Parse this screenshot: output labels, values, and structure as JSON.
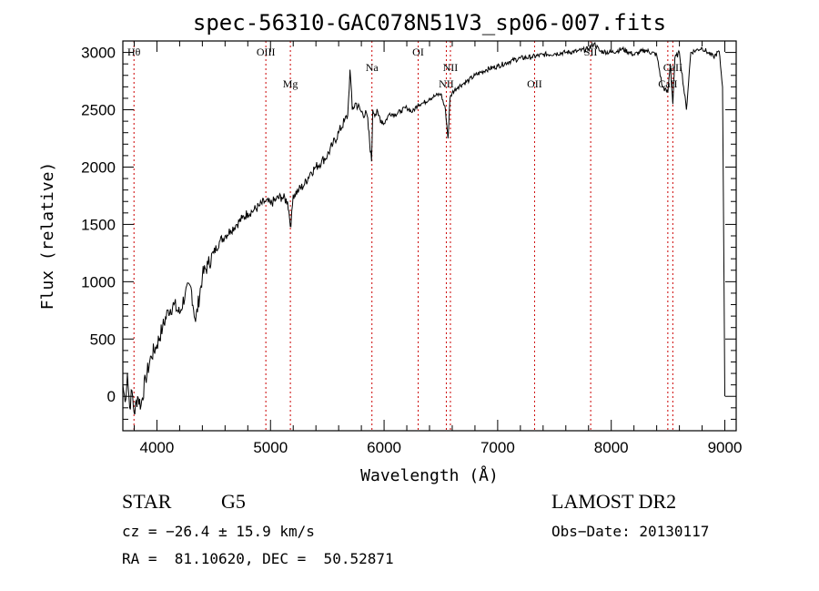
{
  "chart_data": {
    "type": "line",
    "title": "spec-56310-GAC078N51V3_sp06-007.fits",
    "xlabel": "Wavelength (Å)",
    "ylabel": "Flux (relative)",
    "xlim": [
      3700,
      9100
    ],
    "ylim": [
      -300,
      3100
    ],
    "xticks": [
      4000,
      5000,
      6000,
      7000,
      8000,
      9000
    ],
    "yticks": [
      0,
      500,
      1000,
      1500,
      2000,
      2500,
      3000
    ],
    "grid": false,
    "line_color": "#000000",
    "marker_color": "#cc0000",
    "series": [
      {
        "x": [
          3700,
          3720,
          3740,
          3760,
          3780,
          3800,
          3830,
          3860,
          3900,
          3950,
          4000,
          4050,
          4100,
          4150,
          4200,
          4250,
          4300,
          4340,
          4400,
          4450,
          4500,
          4550,
          4600,
          4650,
          4700,
          4750,
          4800,
          4850,
          4900,
          4950,
          5000,
          5050,
          5100,
          5150,
          5180,
          5200,
          5250,
          5300,
          5350,
          5400,
          5450,
          5500,
          5550,
          5600,
          5650,
          5680,
          5700,
          5720,
          5750,
          5800,
          5850,
          5890,
          5900,
          5950,
          6000,
          6050,
          6100,
          6150,
          6200,
          6250,
          6300,
          6350,
          6400,
          6450,
          6500,
          6540,
          6563,
          6580,
          6600,
          6650,
          6700,
          6750,
          6800,
          6900,
          7000,
          7100,
          7200,
          7300,
          7400,
          7500,
          7600,
          7700,
          7800,
          7850,
          7900,
          8000,
          8100,
          8200,
          8300,
          8400,
          8450,
          8498,
          8520,
          8542,
          8560,
          8600,
          8662,
          8700,
          8750,
          8800,
          8850,
          8900,
          8950,
          8980,
          9000
        ],
        "y": [
          100,
          -50,
          200,
          -100,
          50,
          -150,
          0,
          -80,
          150,
          350,
          450,
          600,
          750,
          800,
          720,
          900,
          950,
          650,
          1050,
          1150,
          1250,
          1350,
          1400,
          1450,
          1500,
          1550,
          1600,
          1620,
          1660,
          1700,
          1680,
          1720,
          1740,
          1700,
          1480,
          1760,
          1800,
          1850,
          1950,
          2000,
          2050,
          2100,
          2200,
          2300,
          2400,
          2450,
          2850,
          2500,
          2560,
          2480,
          2450,
          2050,
          2500,
          2450,
          2380,
          2470,
          2460,
          2490,
          2520,
          2480,
          2550,
          2560,
          2600,
          2620,
          2640,
          2500,
          2250,
          2600,
          2650,
          2700,
          2730,
          2760,
          2800,
          2850,
          2880,
          2920,
          2950,
          2960,
          2980,
          2990,
          3000,
          3010,
          3030,
          3080,
          3010,
          3000,
          3030,
          2980,
          3020,
          2980,
          2700,
          2650,
          2900,
          2550,
          2950,
          3000,
          2500,
          3000,
          3020,
          3040,
          3000,
          2960,
          3010,
          2700,
          0
        ]
      }
    ],
    "lines": [
      {
        "label": "Hθ",
        "x": 3798,
        "level": "top"
      },
      {
        "label": "OIII",
        "x": 4959,
        "level": "top"
      },
      {
        "label": "Mg",
        "x": 5175,
        "level": "low"
      },
      {
        "label": "Na",
        "x": 5893,
        "level": "mid"
      },
      {
        "label": "OI",
        "x": 6300,
        "level": "top"
      },
      {
        "label": "NII",
        "x": 6548,
        "level": "low"
      },
      {
        "label": "NII",
        "x": 6584,
        "level": "mid"
      },
      {
        "label": "OII",
        "x": 7325,
        "level": "low"
      },
      {
        "label": "SII",
        "x": 7819,
        "level": "top"
      },
      {
        "label": "CaII",
        "x": 8498,
        "level": "low"
      },
      {
        "label": "CaII",
        "x": 8542,
        "level": "mid"
      }
    ]
  },
  "info": {
    "object_class": "STAR",
    "subclass": "G5",
    "survey": "LAMOST DR2",
    "cz": "cz = −26.4 ± 15.9 km/s",
    "obs_date": "Obs−Date: 20130117",
    "coords": "RA =  81.10620, DEC =  50.52871"
  }
}
